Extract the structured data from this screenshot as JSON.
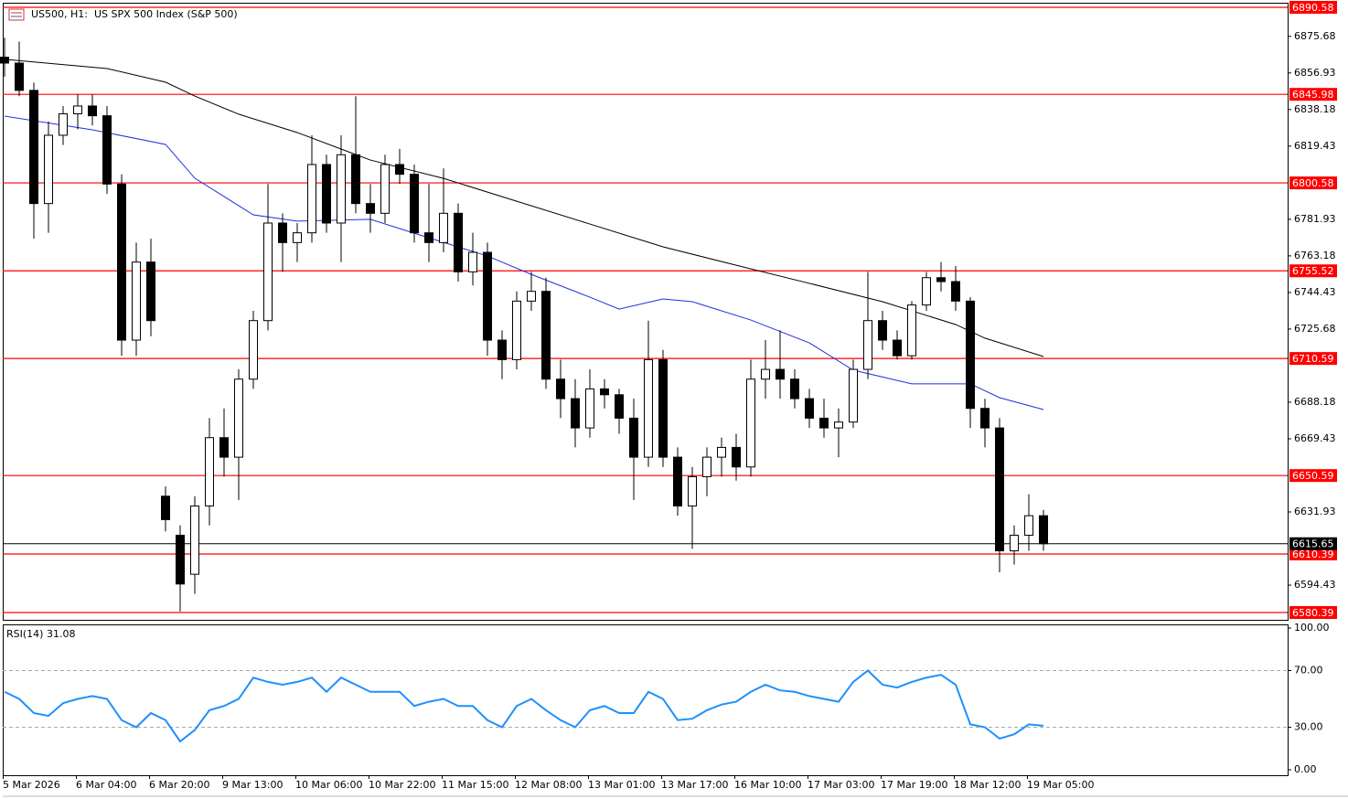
{
  "chart_data": [
    {
      "type": "candlestick",
      "title": "US500, H1:  US SPX 500 Index (S&P 500)",
      "categories": [
        "5 Mar 2026",
        null,
        null,
        null,
        null,
        "6 Mar 04:00",
        null,
        null,
        null,
        null,
        "6 Mar 20:00",
        null,
        null,
        null,
        null,
        "9 Mar 13:00",
        null,
        null,
        null,
        null,
        "10 Mar 06:00",
        null,
        null,
        null,
        null,
        "10 Mar 22:00",
        null,
        null,
        null,
        null,
        "11 Mar 15:00",
        null,
        null,
        null,
        null,
        "12 Mar 08:00",
        null,
        null,
        null,
        null,
        "13 Mar 01:00",
        null,
        null,
        null,
        null,
        "13 Mar 17:00",
        null,
        null,
        null,
        null,
        "16 Mar 10:00",
        null,
        null,
        null,
        null,
        "17 Mar 03:00",
        null,
        null,
        null,
        null,
        "17 Mar 19:00",
        null,
        null,
        null,
        null,
        "18 Mar 12:00",
        null,
        null,
        null,
        null,
        "19 Mar 05:00",
        null
      ],
      "open": [
        6865,
        6862,
        6848,
        6790,
        6825,
        6836,
        6840,
        6835,
        6800,
        6720,
        6760,
        6640,
        6620,
        6600,
        6635,
        6670,
        6660,
        6700,
        6730,
        6780,
        6770,
        6775,
        6810,
        6780,
        6815,
        6790,
        6785,
        6810,
        6805,
        6775,
        6770,
        6785,
        6755,
        6765,
        6720,
        6710,
        6740,
        6745,
        6700,
        6690,
        6675,
        6695,
        6692,
        6680,
        6660,
        6710,
        6660,
        6635,
        6650,
        6660,
        6665,
        6655,
        6700,
        6705,
        6700,
        6690,
        6680,
        6675,
        6678,
        6705,
        6730,
        6720,
        6712,
        6738,
        6752,
        6750,
        6740,
        6685,
        6675,
        6612,
        6620,
        6630
      ],
      "high": [
        6875,
        6873,
        6852,
        6832,
        6840,
        6846,
        6846,
        6840,
        6805,
        6770,
        6772,
        6645,
        6625,
        6640,
        6680,
        6685,
        6705,
        6735,
        6800,
        6785,
        6780,
        6825,
        6815,
        6825,
        6845,
        6800,
        6815,
        6818,
        6810,
        6800,
        6808,
        6790,
        6775,
        6770,
        6725,
        6745,
        6755,
        6752,
        6710,
        6700,
        6705,
        6700,
        6695,
        6690,
        6730,
        6715,
        6665,
        6655,
        6665,
        6670,
        6672,
        6710,
        6720,
        6725,
        6705,
        6695,
        6690,
        6685,
        6710,
        6755,
        6735,
        6725,
        6740,
        6755,
        6760,
        6758,
        6742,
        6690,
        6680,
        6625,
        6641,
        6633
      ],
      "low": [
        6855,
        6845,
        6772,
        6775,
        6820,
        6828,
        6830,
        6795,
        6712,
        6712,
        6722,
        6622,
        6581,
        6590,
        6625,
        6650,
        6638,
        6695,
        6725,
        6755,
        6760,
        6770,
        6775,
        6760,
        6785,
        6775,
        6780,
        6800,
        6770,
        6760,
        6765,
        6750,
        6748,
        6712,
        6700,
        6705,
        6735,
        6695,
        6680,
        6665,
        6670,
        6685,
        6672,
        6638,
        6655,
        6655,
        6630,
        6613,
        6640,
        6650,
        6648,
        6650,
        6690,
        6690,
        6685,
        6675,
        6670,
        6660,
        6675,
        6700,
        6715,
        6710,
        6710,
        6735,
        6745,
        6735,
        6675,
        6665,
        6601,
        6605,
        6612,
        6612
      ],
      "close": [
        6862,
        6848,
        6790,
        6825,
        6836,
        6840,
        6835,
        6800,
        6720,
        6760,
        6730,
        6628,
        6595,
        6635,
        6670,
        6660,
        6700,
        6730,
        6780,
        6770,
        6775,
        6810,
        6780,
        6815,
        6790,
        6785,
        6810,
        6805,
        6775,
        6770,
        6785,
        6755,
        6765,
        6720,
        6710,
        6740,
        6745,
        6700,
        6690,
        6675,
        6695,
        6692,
        6680,
        6660,
        6710,
        6660,
        6635,
        6650,
        6660,
        6665,
        6655,
        6700,
        6705,
        6700,
        6690,
        6680,
        6675,
        6678,
        6705,
        6730,
        6720,
        6712,
        6738,
        6752,
        6750,
        6740,
        6685,
        6675,
        6612,
        6620,
        6630,
        6615.65
      ],
      "up_color": "#ffffff",
      "down_color": "#000000",
      "indicators": [
        {
          "color": "#000000",
          "x": [
            0,
            7,
            11,
            13,
            16,
            20,
            25,
            30,
            35,
            40,
            45,
            50,
            55,
            60,
            65,
            67,
            71
          ],
          "values": [
            6863.9,
            6859.2,
            6852.2,
            6845.1,
            6835.8,
            6826.4,
            6812.3,
            6802.9,
            6791.2,
            6779.5,
            6767.8,
            6758.4,
            6749.1,
            6739.7,
            6728,
            6721,
            6711.6
          ]
        },
        {
          "color": "#1f2fe0",
          "x": [
            0,
            6,
            11,
            13,
            17,
            20,
            25,
            28,
            33,
            36,
            40,
            42,
            45,
            47,
            51,
            55,
            58,
            62,
            66,
            68,
            71
          ],
          "values": [
            6834.8,
            6827.8,
            6820.3,
            6803,
            6784.2,
            6781,
            6781.9,
            6774.8,
            6763.1,
            6753.7,
            6742,
            6735.9,
            6741.1,
            6739.7,
            6730.3,
            6718.6,
            6704.6,
            6697.6,
            6697.6,
            6690.5,
            6684.4
          ]
        }
      ],
      "levels": [
        6890.58,
        6845.98,
        6800.58,
        6755.52,
        6710.59,
        6650.59,
        6610.39,
        6580.39
      ],
      "level_color": "#ff0000",
      "last_price": 6615.65,
      "ylim": [
        6576.64,
        6892.92
      ],
      "yticks": [
        6875.68,
        6856.93,
        6838.18,
        6819.43,
        6781.93,
        6763.18,
        6744.43,
        6725.68,
        6688.18,
        6669.43,
        6631.93,
        6594.43
      ]
    },
    {
      "type": "line",
      "title": "RSI(14) 31.08",
      "color": "#1e90ff",
      "values": [
        55,
        50,
        40,
        38,
        47,
        50,
        52,
        50,
        35,
        30,
        40,
        35,
        20,
        28,
        42,
        45,
        50,
        65,
        62,
        60,
        62,
        65,
        55,
        65,
        60,
        55,
        55,
        55,
        45,
        48,
        50,
        45,
        45,
        35,
        30,
        45,
        50,
        42,
        35,
        30,
        42,
        45,
        40,
        40,
        55,
        50,
        35,
        36,
        42,
        46,
        48,
        55,
        60,
        56,
        55,
        52,
        50,
        48,
        62,
        70,
        60,
        58,
        62,
        65,
        67,
        60,
        32,
        30,
        22,
        25,
        32,
        31.08
      ],
      "ylim": [
        0,
        100
      ],
      "yticks": [
        {
          "value": 100,
          "label": "100.00"
        },
        {
          "value": 70,
          "label": "70.00"
        },
        {
          "value": 30,
          "label": "30.00"
        },
        {
          "value": 0,
          "label": "0.00"
        }
      ]
    }
  ]
}
